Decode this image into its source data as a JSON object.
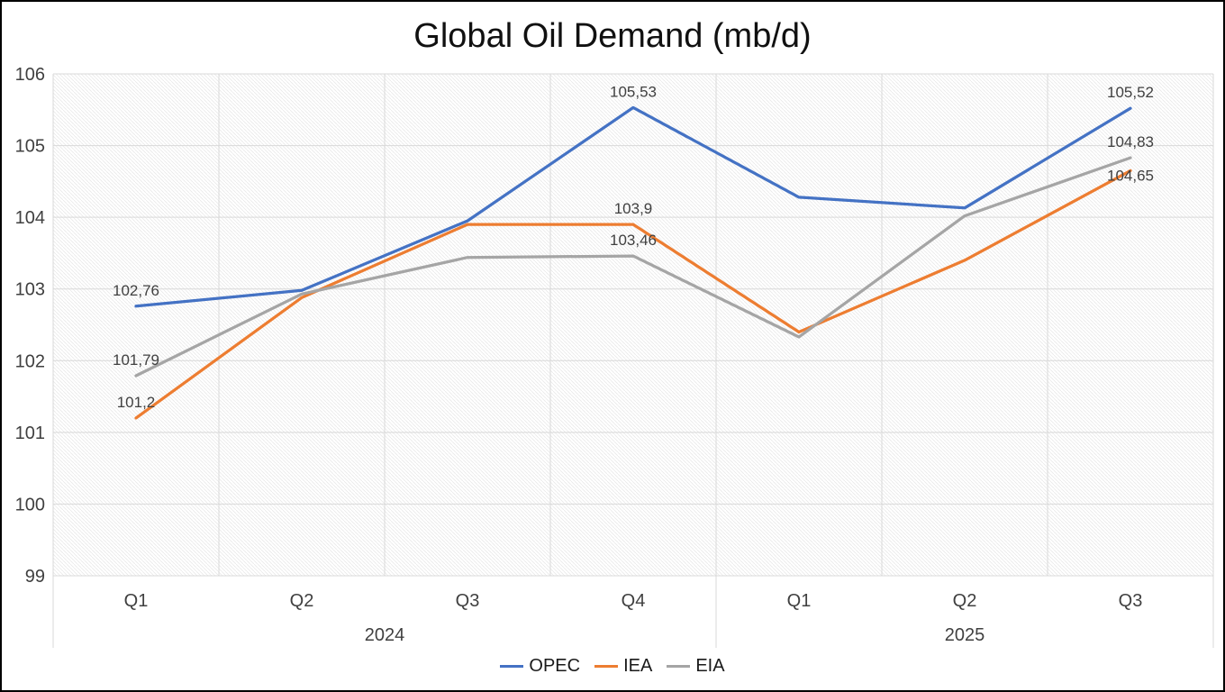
{
  "title": "Global Oil Demand (mb/d)",
  "chart_data": {
    "type": "line",
    "title": "Global Oil Demand (mb/d)",
    "categories": [
      "Q1",
      "Q2",
      "Q3",
      "Q4",
      "Q1",
      "Q2",
      "Q3"
    ],
    "year_groups": [
      {
        "label": "2024",
        "span": 4
      },
      {
        "label": "2025",
        "span": 3
      }
    ],
    "series": [
      {
        "name": "OPEC",
        "color": "#4472C4",
        "values": [
          102.76,
          102.98,
          103.95,
          105.53,
          104.28,
          104.13,
          105.52
        ],
        "point_labels": [
          "102,76",
          null,
          null,
          "105,53",
          null,
          null,
          "105,52"
        ]
      },
      {
        "name": "IEA",
        "color": "#ED7D31",
        "values": [
          101.2,
          102.88,
          103.9,
          103.9,
          102.4,
          103.4,
          104.65
        ],
        "point_labels": [
          "101,2",
          null,
          null,
          "103,9",
          null,
          null,
          {
            "text": "104,65",
            "dy": 5
          }
        ]
      },
      {
        "name": "EIA",
        "color": "#A5A5A5",
        "values": [
          101.79,
          102.93,
          103.44,
          103.46,
          102.33,
          104.02,
          104.83
        ],
        "point_labels": [
          "101,79",
          null,
          null,
          "103,46",
          null,
          null,
          "104,83"
        ]
      }
    ],
    "ylim": [
      99,
      106
    ],
    "yticks": [
      99,
      100,
      101,
      102,
      103,
      104,
      105,
      106
    ],
    "grid": true,
    "legend_position": "bottom",
    "colors": {
      "gridline": "#D9D9D9",
      "hatch": "#E8E8E8",
      "axis_text": "#404040",
      "data_label_text": "#404040"
    }
  },
  "legend": {
    "items": [
      {
        "label": "OPEC"
      },
      {
        "label": "IEA"
      },
      {
        "label": "EIA"
      }
    ]
  }
}
